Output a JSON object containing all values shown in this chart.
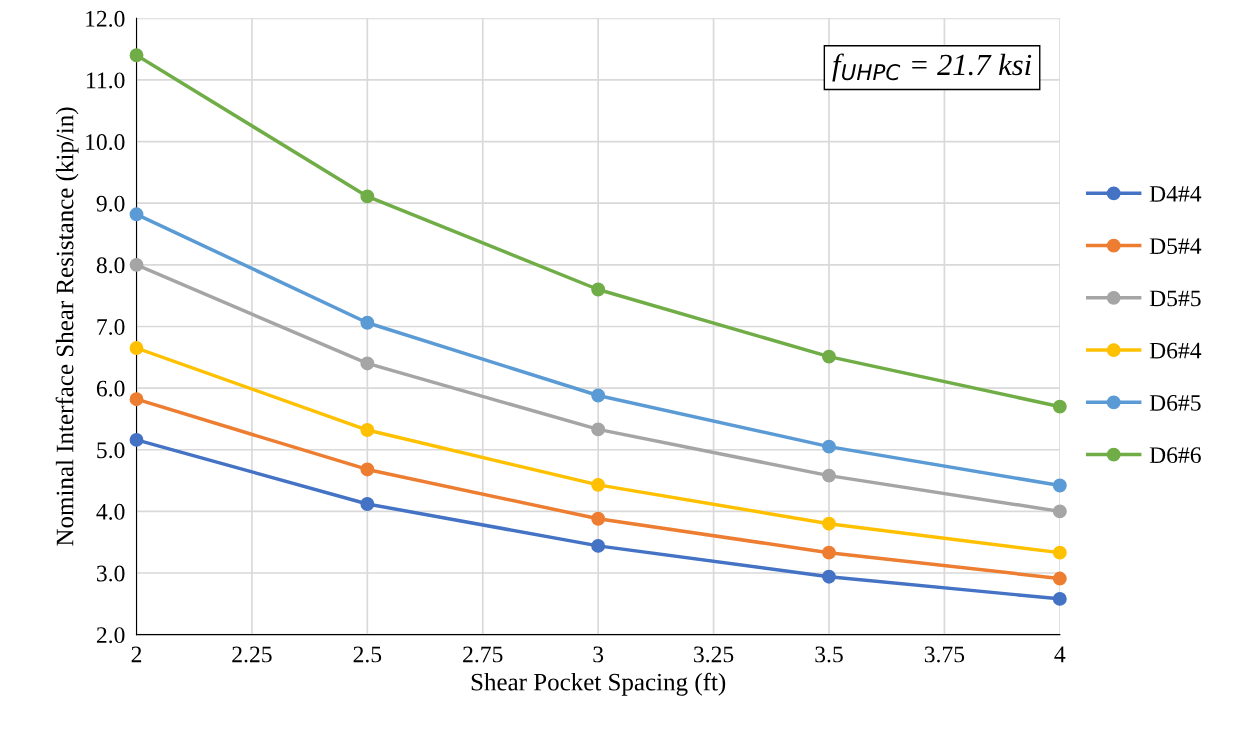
{
  "chart_data": {
    "type": "line",
    "xlabel": "Shear Pocket Spacing (ft)",
    "ylabel": "Nominal Interface Shear Resistance (kip/in)",
    "x": [
      2,
      2.5,
      3,
      3.5,
      4
    ],
    "series": [
      {
        "name": "D4#4",
        "color": "#4472c4",
        "values": [
          5.16,
          4.12,
          3.44,
          2.94,
          2.58
        ]
      },
      {
        "name": "D5#4",
        "color": "#ed7d31",
        "values": [
          5.82,
          4.68,
          3.88,
          3.33,
          2.91
        ]
      },
      {
        "name": "D5#5",
        "color": "#a5a5a5",
        "values": [
          8.0,
          6.4,
          5.33,
          4.58,
          4.0
        ]
      },
      {
        "name": "D6#4",
        "color": "#ffc000",
        "values": [
          6.65,
          5.32,
          4.43,
          3.8,
          3.33
        ]
      },
      {
        "name": "D6#5",
        "color": "#5b9bd5",
        "values": [
          8.82,
          7.06,
          5.88,
          5.05,
          4.42
        ]
      },
      {
        "name": "D6#6",
        "color": "#70ad47",
        "values": [
          11.4,
          9.11,
          7.6,
          6.51,
          5.7
        ]
      }
    ],
    "xlim": [
      2,
      4
    ],
    "xticks": [
      2,
      2.25,
      2.5,
      2.75,
      3,
      3.25,
      3.5,
      3.75,
      4
    ],
    "ylim": [
      2,
      12
    ],
    "yticks": [
      {
        "value": 2,
        "label": "2.0"
      },
      {
        "value": 3,
        "label": "3.0"
      },
      {
        "value": 4,
        "label": "4.0"
      },
      {
        "value": 5,
        "label": "5.0"
      },
      {
        "value": 6,
        "label": "6.0"
      },
      {
        "value": 7,
        "label": "7.0"
      },
      {
        "value": 8,
        "label": "8.0"
      },
      {
        "value": 9,
        "label": "9.0"
      },
      {
        "value": 10,
        "label": "10.0"
      },
      {
        "value": 11,
        "label": "11.0"
      },
      {
        "value": 12,
        "label": "12.0"
      }
    ],
    "annotations": [
      "f$_{UHPC}$ = 21.7 ksi"
    ],
    "grid": true,
    "legend": "right",
    "marker": "circle",
    "line_style": "solid"
  }
}
